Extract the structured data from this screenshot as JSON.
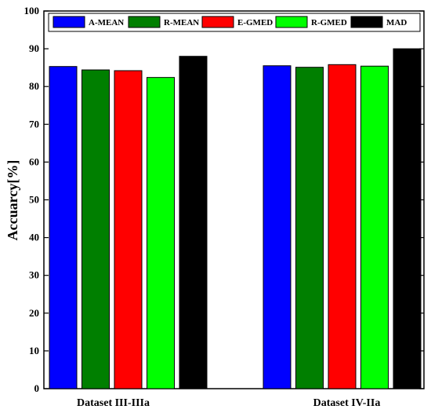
{
  "chart_data": {
    "type": "bar",
    "categories": [
      "Dataset III-IIIa",
      "Dataset IV-IIa"
    ],
    "series": [
      {
        "name": "A-MEAN",
        "color": "#0000ff",
        "values": [
          85.3,
          85.5
        ]
      },
      {
        "name": "R-MEAN",
        "color": "#007f00",
        "values": [
          84.4,
          85.1
        ]
      },
      {
        "name": "E-GMED",
        "color": "#ff0000",
        "values": [
          84.2,
          85.8
        ]
      },
      {
        "name": "R-GMED",
        "color": "#00ff00",
        "values": [
          82.4,
          85.4
        ]
      },
      {
        "name": "MAD",
        "color": "#000000",
        "values": [
          88.0,
          90.0
        ]
      }
    ],
    "ylabel": "Accuarcy[%]",
    "ylim": [
      0,
      100
    ],
    "yticks": [
      0,
      10,
      20,
      30,
      40,
      50,
      60,
      70,
      80,
      90,
      100
    ],
    "legend_position": "top",
    "grid": false
  }
}
